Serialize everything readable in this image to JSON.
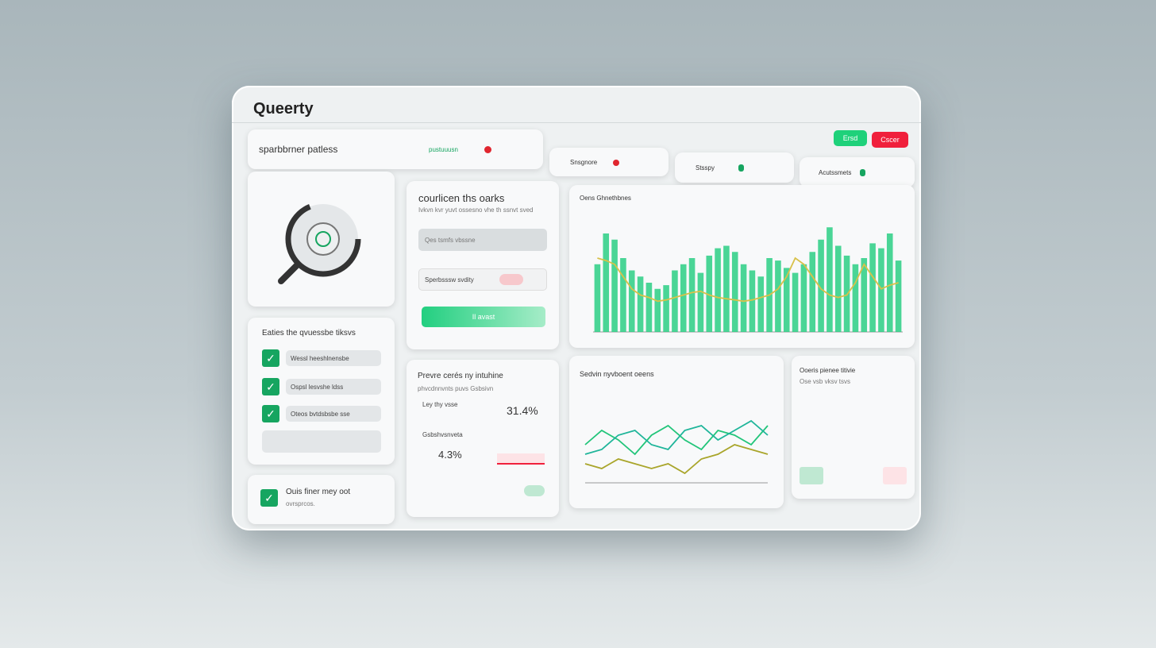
{
  "header": {
    "title": "Queerty",
    "subtitle": "sparbbrner patless",
    "status": "pustuuusn",
    "buttons": [
      "Ersd",
      "Cscer"
    ]
  },
  "chips": [
    "Snsgnore",
    "Stsspy",
    "Acutssmets"
  ],
  "search_card": {
    "title": "courlicen ths oarks",
    "subtitle": "Ivkvn kvr yuvt ossesno vhe th ssnvt sved",
    "input": "Qes tsmfs vbssne",
    "toggle": "Sperbsssw svdity",
    "button": "Il avast"
  },
  "checklist": {
    "title": "Eaties the qvuessbe tiksvs",
    "items": [
      "Wessl heeshlnensbe",
      "Ospsl lesvshe ldss",
      "Oteos bvtdsbsbe sse"
    ]
  },
  "note_card": {
    "title": "Ouis finer mey oot",
    "subtitle": "ovrsprcos."
  },
  "stats_card": {
    "title": "Prevre cerés ny intuhine",
    "subtitle": "phvcdnnvnts puvs Gsbsivn",
    "rows": [
      {
        "label": "Ley thy vsse",
        "value": "31.4%"
      },
      {
        "label": "Gsbshvsnveta",
        "value": "4.3%"
      }
    ]
  },
  "table_card": {
    "title": "Ooeris pienee titivie",
    "subtitle": "Ose vsb vksv tsvs"
  },
  "chart_data": [
    {
      "type": "bar",
      "title": "Oens Ghnethbnes",
      "ylim": [
        0,
        100
      ],
      "series": [
        {
          "color": "#2ccf84",
          "values": [
            55,
            80,
            75,
            60,
            50,
            45,
            40,
            35,
            38,
            50,
            55,
            60,
            48,
            62,
            68,
            70,
            65,
            55,
            50,
            45,
            60,
            58,
            52,
            48,
            55,
            65,
            75,
            85,
            70,
            62,
            55,
            60,
            72,
            68,
            80,
            58
          ]
        },
        {
          "type": "line",
          "color": "#d8c14a",
          "values": [
            60,
            58,
            55,
            45,
            35,
            30,
            28,
            25,
            26,
            28,
            30,
            32,
            33,
            30,
            28,
            27,
            26,
            25,
            26,
            28,
            30,
            35,
            45,
            60,
            55,
            45,
            35,
            30,
            28,
            30,
            40,
            55,
            45,
            35,
            38,
            40
          ]
        }
      ]
    },
    {
      "type": "line",
      "title": "Sedvin nyvboent oeens",
      "ylim": [
        0,
        100
      ],
      "series": [
        {
          "color": "#22c57a",
          "values": [
            40,
            55,
            45,
            30,
            50,
            60,
            45,
            35,
            55,
            50,
            40,
            60
          ]
        },
        {
          "color": "#1fb59a",
          "values": [
            30,
            35,
            50,
            55,
            40,
            35,
            55,
            60,
            45,
            55,
            65,
            50
          ]
        },
        {
          "color": "#a9a52a",
          "values": [
            20,
            15,
            25,
            20,
            15,
            20,
            10,
            25,
            30,
            40,
            35,
            30
          ]
        }
      ]
    }
  ]
}
